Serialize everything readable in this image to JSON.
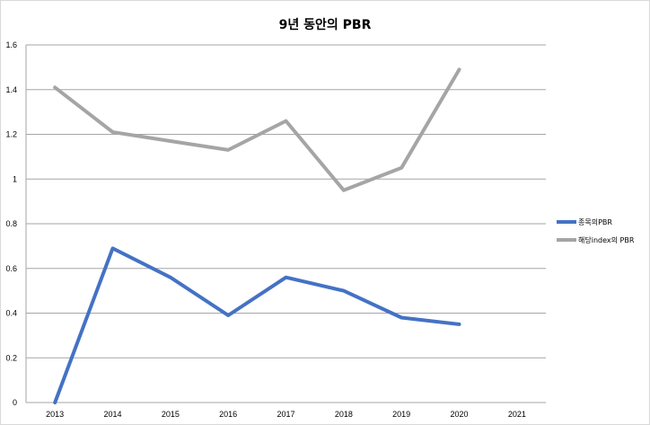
{
  "chart_data": {
    "type": "line",
    "title": "9년 동안의 PBR",
    "xlabel": "",
    "ylabel": "",
    "categories": [
      "2013",
      "2014",
      "2015",
      "2016",
      "2017",
      "2018",
      "2019",
      "2020",
      "2021"
    ],
    "ylim": [
      0,
      1.6
    ],
    "y_ticks": [
      "0",
      "0.2",
      "0.4",
      "0.6",
      "0.8",
      "1",
      "1.2",
      "1.4",
      "1.6"
    ],
    "grid": true,
    "legend_position": "right",
    "series": [
      {
        "name": "종목의PBR",
        "color": "#4472c4",
        "values": [
          0,
          0.69,
          0.56,
          0.39,
          0.56,
          0.5,
          0.38,
          0.35,
          null
        ]
      },
      {
        "name": "해당index의 PBR",
        "color": "#a5a5a5",
        "values": [
          1.41,
          1.21,
          1.17,
          1.13,
          1.26,
          0.95,
          1.05,
          1.49,
          null
        ]
      }
    ]
  }
}
